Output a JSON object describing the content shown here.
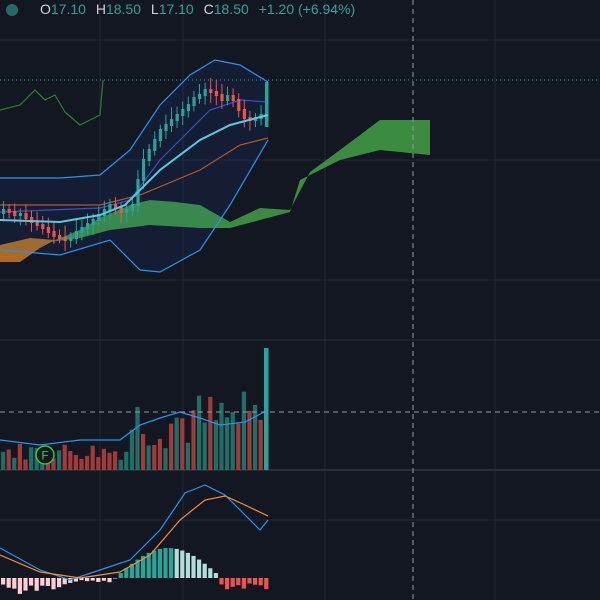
{
  "header": {
    "open_label": "O",
    "open": "17.10",
    "high_label": "H",
    "high": "18.50",
    "low_label": "L",
    "low": "17.10",
    "close_label": "C",
    "close": "18.50",
    "change": "+1.20 (+6.94%)"
  },
  "marker": {
    "label": "F"
  }
}
